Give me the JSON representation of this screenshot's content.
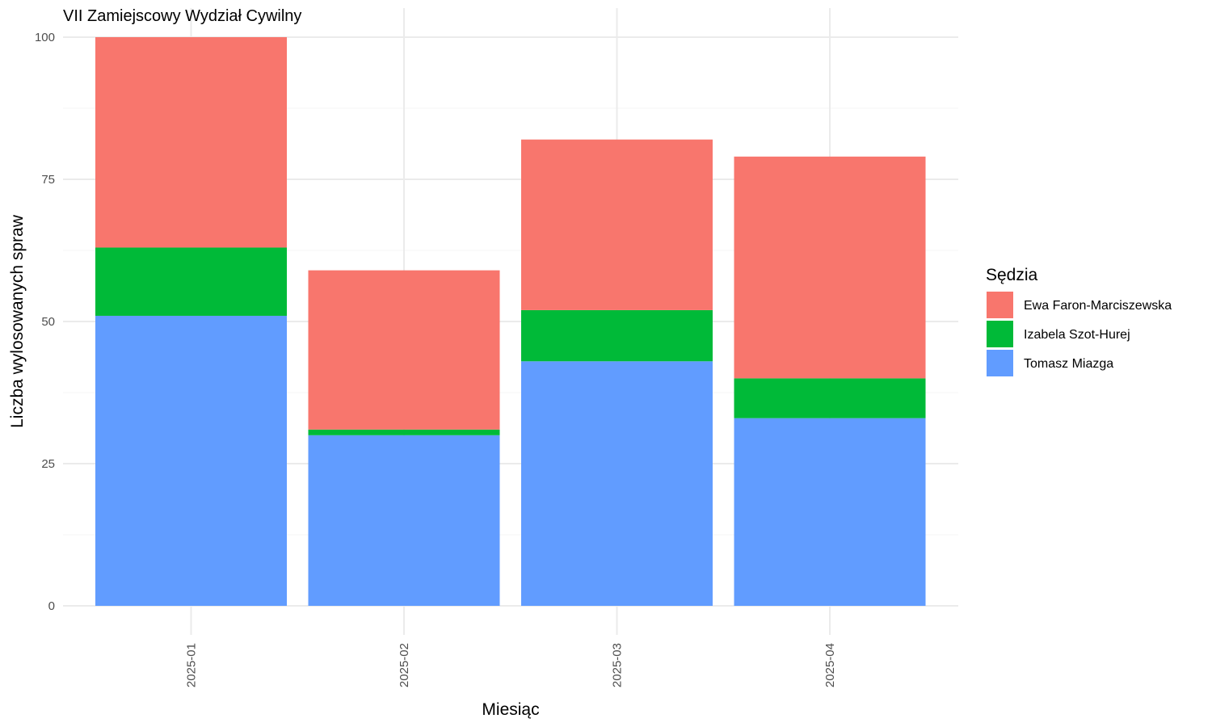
{
  "chart_data": {
    "type": "bar",
    "stacked": true,
    "title": "VII Zamiejscowy Wydział Cywilny",
    "xlabel": "Miesiąc",
    "ylabel": "Liczba wylosowanych spraw",
    "categories": [
      "2025-01",
      "2025-02",
      "2025-03",
      "2025-04"
    ],
    "ylim": [
      0,
      100
    ],
    "yticks": [
      0,
      25,
      50,
      75,
      100
    ],
    "grid": true,
    "legend": {
      "title": "Sędzia",
      "position": "right",
      "entries": [
        "Ewa Faron-Marciszewska",
        "Izabela Szot-Hurej",
        "Tomasz Miazga"
      ]
    },
    "series": [
      {
        "name": "Tomasz Miazga",
        "color": "#619CFF",
        "values": [
          51,
          30,
          43,
          33
        ]
      },
      {
        "name": "Izabela Szot-Hurej",
        "color": "#00BA38",
        "values": [
          12,
          1,
          9,
          7
        ]
      },
      {
        "name": "Ewa Faron-Marciszewska",
        "color": "#F8766D",
        "values": [
          37,
          28,
          30,
          39
        ]
      }
    ]
  }
}
